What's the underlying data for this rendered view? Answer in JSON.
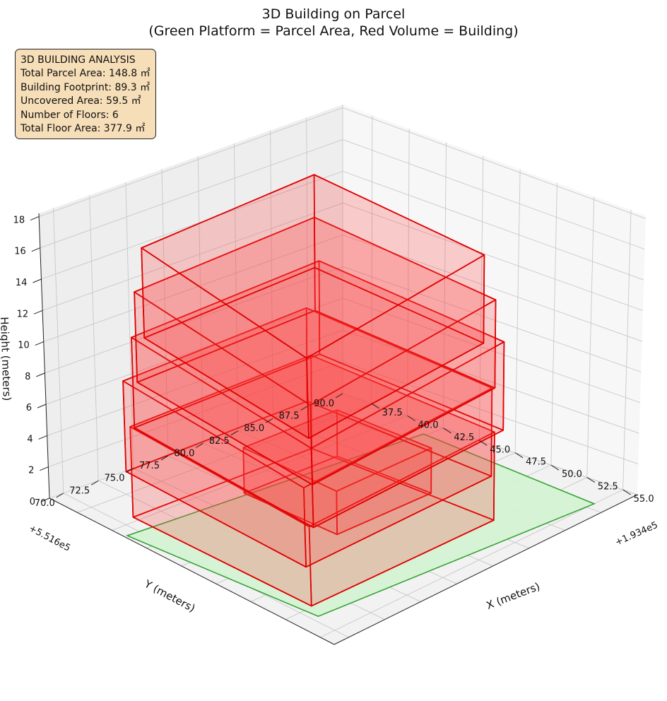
{
  "chart_data": {
    "type": "3d-box",
    "title": "3D Building on Parcel",
    "subtitle": "(Green Platform = Parcel Area, Red Volume = Building)",
    "xlabel": "X (meters)",
    "ylabel": "Y (meters)",
    "zlabel": "Height (meters)",
    "x_offset_label": "+1.934e5",
    "y_offset_label": "+5.516e5",
    "x_ticks": [
      "37.5",
      "40.0",
      "42.5",
      "45.0",
      "47.5",
      "50.0",
      "52.5",
      "55.0"
    ],
    "y_ticks": [
      "70.0",
      "72.5",
      "75.0",
      "77.5",
      "80.0",
      "82.5",
      "85.0",
      "87.5",
      "90.0"
    ],
    "z_ticks": [
      "0",
      "2",
      "4",
      "6",
      "8",
      "10",
      "12",
      "14",
      "16",
      "18"
    ],
    "xlim": [
      35.5,
      56
    ],
    "ylim": [
      69,
      90
    ],
    "zlim": [
      0,
      18.2
    ],
    "grid": true,
    "parcel": {
      "label": "Parcel Area",
      "color": "#2ca02c",
      "fill": "#d4f2d4"
    },
    "building": {
      "label": "Building",
      "color": "#e00000",
      "fill": "#ff4040"
    }
  },
  "stats": {
    "heading": "3D BUILDING ANALYSIS",
    "parcel_area": "Total Parcel Area: 148.8 ㎡",
    "footprint": "Building Footprint: 89.3 ㎡",
    "uncovered": "Uncovered Area: 59.5 ㎡",
    "floors": "Number of Floors: 6",
    "floor_area": "Total Floor Area: 377.9 ㎡"
  }
}
